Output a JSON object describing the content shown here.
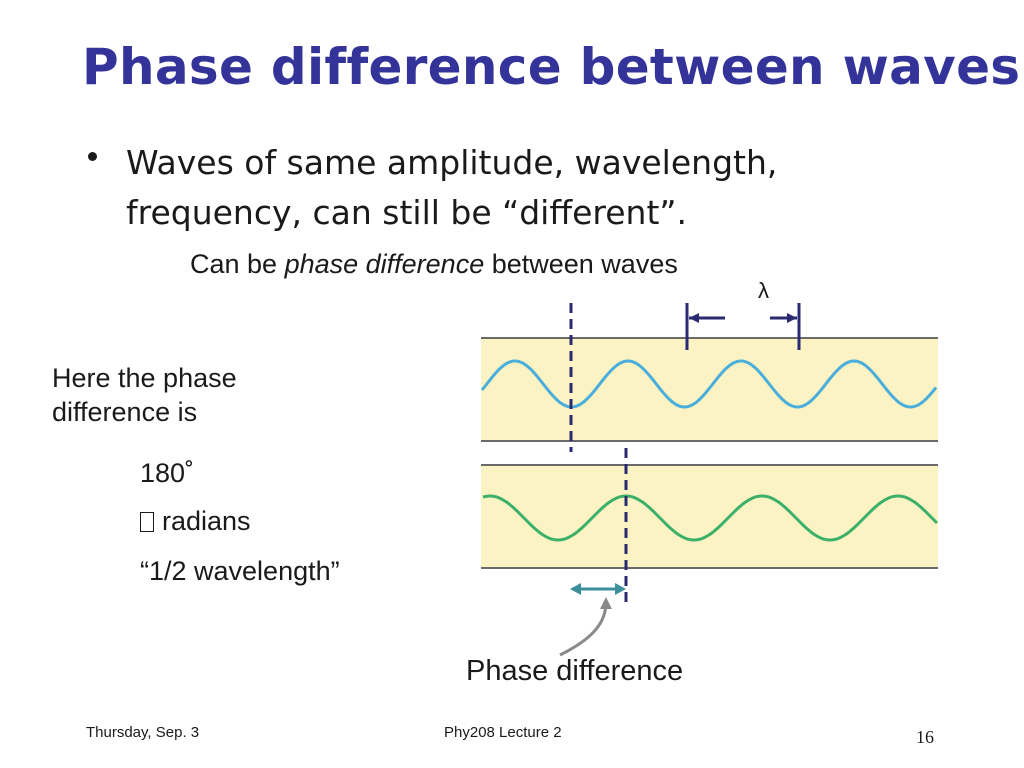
{
  "slide": {
    "title": "Phase difference between waves",
    "bullet": "Waves of same amplitude, wavelength, frequency, can still be “different”.",
    "subline": {
      "prefix": "Can be ",
      "emphasis": "phase difference",
      "suffix": " between waves"
    },
    "lambda_label": "λ",
    "phase_text": "Here the phase difference is",
    "values": {
      "degrees": "180˚",
      "radians": "radians",
      "wavelength": "“1/2 wavelength”"
    },
    "diagram_caption": "Phase difference"
  },
  "footer": {
    "date": "Thursday, Sep. 3",
    "course": "Phy208 Lecture 2",
    "page": "16"
  },
  "colors": {
    "title": "#33339a",
    "band": "#fbf3c3",
    "wave_blue": "#4aaedc",
    "wave_green": "#3cb068",
    "dashed": "#2a2a70",
    "arrow_teal": "#3a8f9a"
  }
}
